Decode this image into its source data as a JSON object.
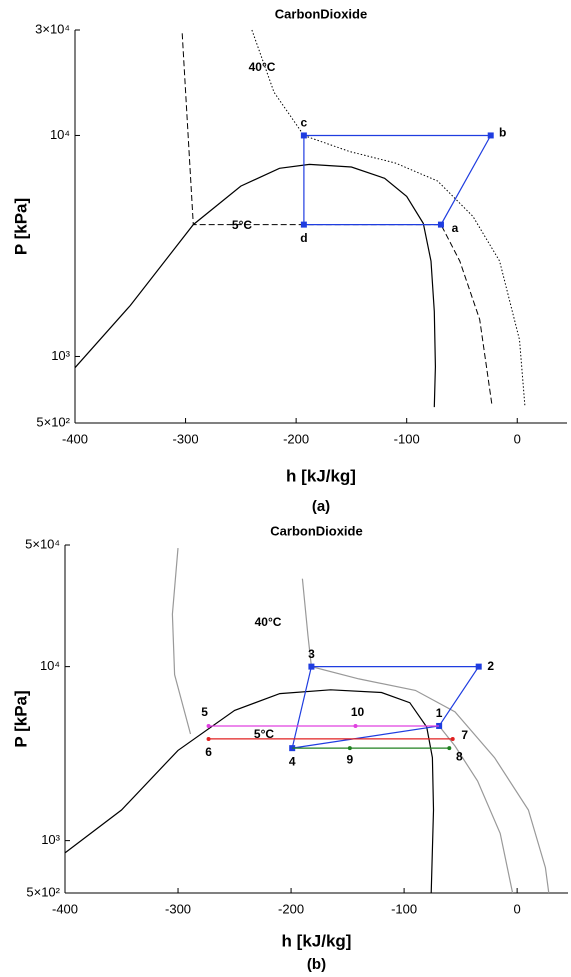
{
  "chart_data": [
    {
      "type": "line",
      "title": "CarbonDioxide",
      "caption": "(a)",
      "xlabel": "h [kJ/kg]",
      "ylabel": "P [kPa]",
      "xlim": [
        -400,
        45
      ],
      "ylim": [
        500,
        30000
      ],
      "log_y": true,
      "xticks": [
        -400,
        -300,
        -200,
        -100,
        0
      ],
      "yticks": [
        {
          "value": 30000,
          "label": "3×10⁴"
        },
        {
          "value": 10000,
          "label": "10⁴"
        },
        {
          "value": 1000,
          "label": "10³"
        },
        {
          "value": 500,
          "label": "5×10²"
        }
      ],
      "series": [
        {
          "color": "#000000",
          "style": "solid",
          "x": [
            -400,
            -350,
            -293,
            -250,
            -215,
            -188,
            -150,
            -120,
            -100,
            -85,
            -78,
            -75,
            -74,
            -75
          ],
          "values": [
            890,
            1700,
            3950,
            5900,
            7100,
            7400,
            7200,
            6400,
            5300,
            4000,
            2700,
            1600,
            900,
            590
          ]
        },
        {
          "color": "#000000",
          "style": "dotted",
          "label": "40°C",
          "x": [
            -240,
            -220,
            -193,
            -152,
            -110,
            -72,
            -40,
            -16,
            2,
            7
          ],
          "values": [
            30000,
            15700,
            10000,
            8470,
            7500,
            6220,
            4300,
            2700,
            1190,
            590
          ]
        },
        {
          "color": "#000000",
          "style": "dashed",
          "label": "5°C",
          "x": [
            -303,
            -293,
            -69,
            -52,
            -34,
            -23
          ],
          "values": [
            29000,
            3950,
            3950,
            2700,
            1470,
            610
          ]
        },
        {
          "color": "#1f3de0",
          "style": "solid",
          "closed": true,
          "markers": true,
          "x": [
            -193,
            -193,
            -24,
            -69
          ],
          "values": [
            3950,
            10000,
            10000,
            3950
          ],
          "labels": [
            "d",
            "c",
            "b",
            "a"
          ]
        }
      ]
    },
    {
      "type": "line",
      "title": "CarbonDioxide",
      "caption": "(b)",
      "xlabel": "h [kJ/kg]",
      "ylabel": "P [kPa]",
      "xlim": [
        -400,
        45
      ],
      "ylim": [
        500,
        50000
      ],
      "log_y": true,
      "xticks": [
        -400,
        -300,
        -200,
        -100,
        0
      ],
      "yticks": [
        {
          "value": 50000,
          "label": "5×10⁴"
        },
        {
          "value": 10000,
          "label": "10⁴"
        },
        {
          "value": 1000,
          "label": "10³"
        },
        {
          "value": 500,
          "label": "5×10²"
        }
      ],
      "series": [
        {
          "color": "#000000",
          "style": "solid",
          "x": [
            -400,
            -350,
            -300,
            -250,
            -210,
            -165,
            -120,
            -95,
            -80,
            -75,
            -74,
            -76
          ],
          "values": [
            850,
            1500,
            3300,
            5600,
            7000,
            7360,
            7100,
            6200,
            4500,
            3000,
            1500,
            500
          ]
        },
        {
          "color": "#999999",
          "style": "solid",
          "label": "40°C",
          "x": [
            -190,
            -185,
            -182,
            -140,
            -90,
            -55,
            -20,
            10,
            25,
            28
          ],
          "values": [
            32000,
            15000,
            10000,
            8500,
            7300,
            5500,
            3000,
            1500,
            700,
            500
          ]
        },
        {
          "color": "#999999",
          "style": "solid",
          "x": [
            -300,
            -305,
            -303,
            -289
          ],
          "values": [
            48000,
            20000,
            9000,
            4100
          ]
        },
        {
          "color": "#999999",
          "style": "solid",
          "x": [
            -69,
            -55,
            -35,
            -15,
            -4
          ],
          "values": [
            4560,
            3500,
            2200,
            1100,
            500
          ]
        },
        {
          "color": "#1f3de0",
          "style": "solid",
          "closed": true,
          "markers": true,
          "x": [
            -199,
            -182,
            -34,
            -69
          ],
          "values": [
            3400,
            10000,
            10000,
            4560
          ],
          "labels": [
            "4",
            "3",
            "2",
            "1"
          ]
        },
        {
          "color": "#e040e0",
          "style": "solid",
          "x": [
            -273,
            -143,
            -69
          ],
          "values": [
            4560,
            4560,
            4560
          ],
          "labels": [
            "5",
            "10",
            null
          ]
        },
        {
          "color": "#e02020",
          "style": "solid",
          "label": "5°C",
          "x": [
            -273,
            -57
          ],
          "values": [
            3840,
            3840
          ],
          "labels": [
            "6",
            "7"
          ]
        },
        {
          "color": "#208020",
          "style": "solid",
          "x": [
            -199,
            -148,
            -60
          ],
          "values": [
            3400,
            3400,
            3400
          ],
          "labels": [
            null,
            "9",
            "8"
          ]
        }
      ]
    }
  ]
}
